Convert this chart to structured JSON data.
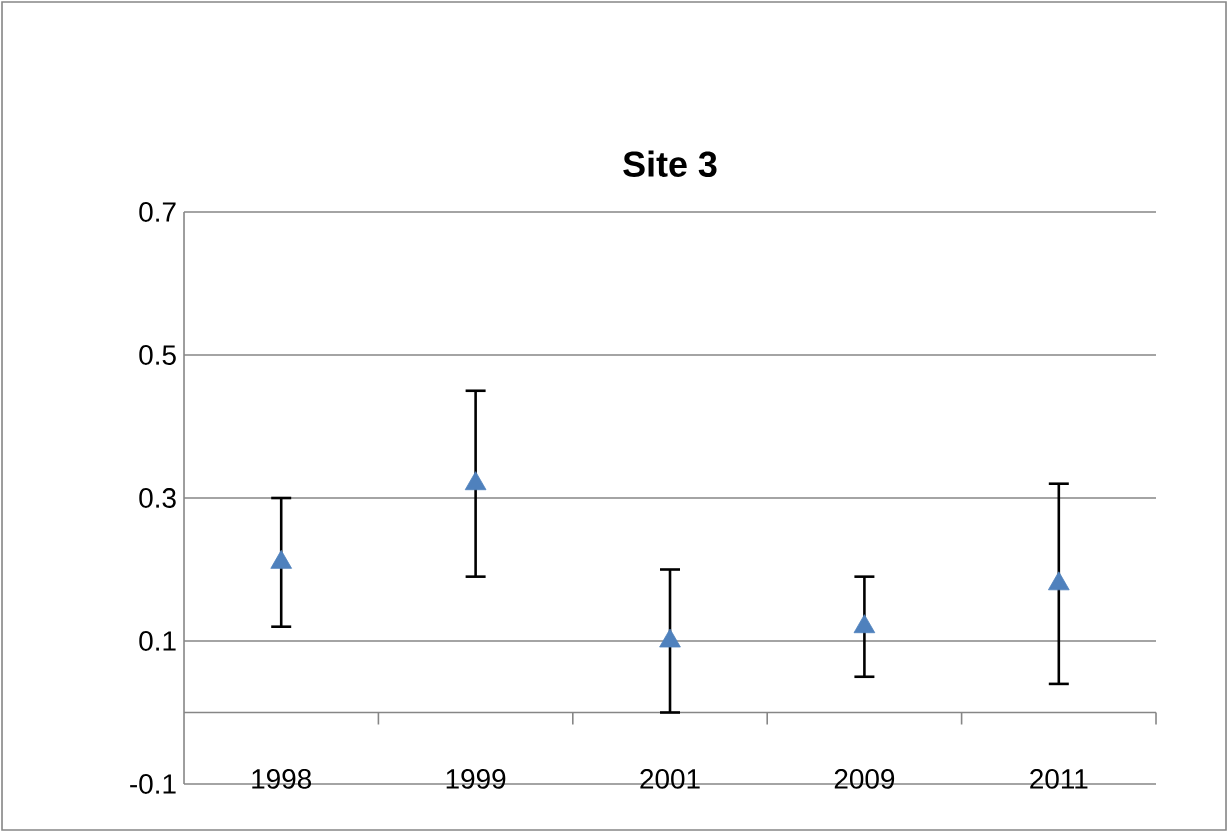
{
  "chart_data": {
    "type": "scatter",
    "title": "Site 3",
    "categories": [
      "1998",
      "1999",
      "2001",
      "2009",
      "2011"
    ],
    "values": [
      0.21,
      0.32,
      0.1,
      0.12,
      0.18
    ],
    "errors": [
      [
        0.12,
        0.3
      ],
      [
        0.19,
        0.45
      ],
      [
        0.0,
        0.2
      ],
      [
        0.05,
        0.19
      ],
      [
        0.04,
        0.32
      ]
    ],
    "color": "#4f81bd",
    "marker": "triangle",
    "ylim": [
      -0.1,
      0.7
    ],
    "yticks": [
      -0.1,
      0.1,
      0.3,
      0.5,
      0.7
    ],
    "grid": "y"
  }
}
